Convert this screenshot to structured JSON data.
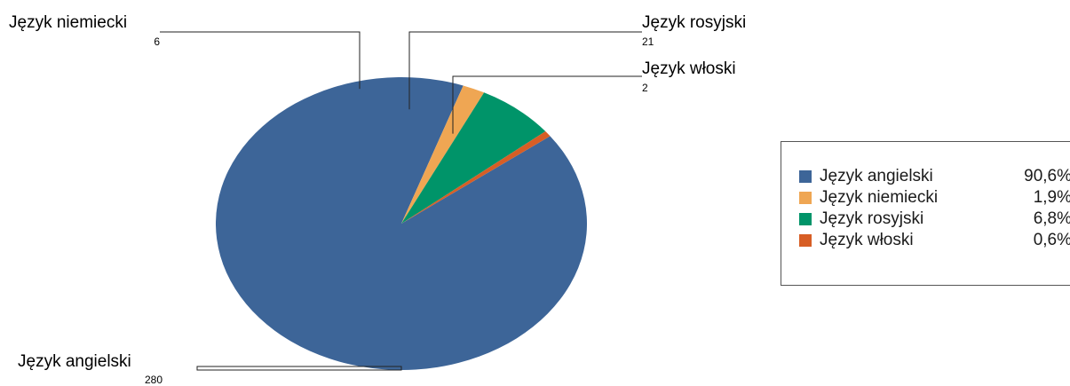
{
  "chart_data": {
    "type": "pie",
    "series": [
      {
        "name": "Język angielski",
        "value": 280,
        "percent_label": "90,6%",
        "color": "#3d6598"
      },
      {
        "name": "Język niemiecki",
        "value": 6,
        "percent_label": "1,9%",
        "color": "#efa653"
      },
      {
        "name": "Język rosyjski",
        "value": 21,
        "percent_label": "6,8%",
        "color": "#009469"
      },
      {
        "name": "Język włoski",
        "value": 2,
        "percent_label": "0,6%",
        "color": "#d75e25"
      }
    ],
    "legend_position": "right"
  }
}
